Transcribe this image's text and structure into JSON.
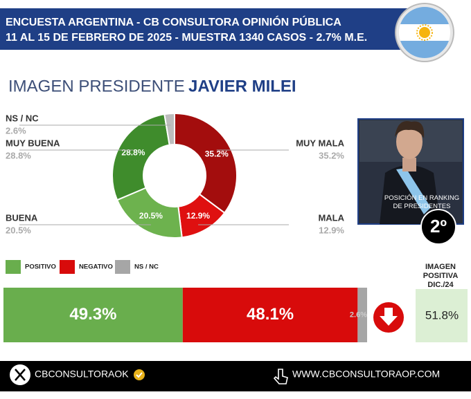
{
  "header": {
    "title": "ENCUESTA ARGENTINA - CB CONSULTORA OPINIÓN PÚBLICA",
    "subtitle": "11 AL 15 DE FEBRERO DE 2025 - MUESTRA 1340 CASOS - 2.7% M.E."
  },
  "heading": {
    "prefix": "IMAGEN PRESIDENTE",
    "name": "JAVIER MILEI"
  },
  "chart_data": [
    {
      "type": "donut",
      "categories": [
        "MUY MALA",
        "MALA",
        "BUENA",
        "MUY BUENA",
        "NS / NC"
      ],
      "values": [
        35.2,
        12.9,
        20.5,
        28.8,
        2.6
      ],
      "value_labels": [
        "35.2%",
        "12.9%",
        "20.5%",
        "28.8%",
        "2.6%"
      ],
      "colors": [
        "#a30d0d",
        "#df1010",
        "#6db24e",
        "#3f8c2c",
        "#bdbdbd"
      ]
    },
    {
      "type": "stacked-bar",
      "xlim": [
        0,
        100
      ],
      "series": [
        {
          "name": "POSITIVO",
          "color": "#69ae4d",
          "values": [
            49.3
          ],
          "value_labels": [
            "49.3%"
          ]
        },
        {
          "name": "NEGATIVO",
          "color": "#d80b0b",
          "values": [
            48.1
          ],
          "value_labels": [
            "48.1%"
          ]
        },
        {
          "name": "NS / NC",
          "color": "#a6a6a6",
          "values": [
            2.6
          ],
          "value_labels": [
            "2.6%"
          ]
        }
      ]
    }
  ],
  "ranking": {
    "caption": "POSICIÓN EN RANKING DE PRESIDENTES",
    "position": "2º"
  },
  "previous": {
    "label": "IMAGEN POSITIVA DIC./24",
    "value": 51.8,
    "value_label": "51.8%"
  },
  "footer": {
    "handle": "CBCONSULTORAOK",
    "website": "WWW.CBCONSULTORAOP.COM"
  }
}
